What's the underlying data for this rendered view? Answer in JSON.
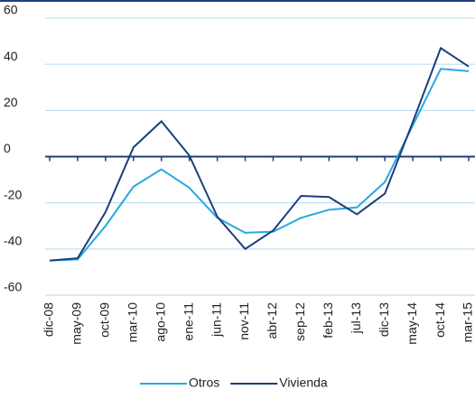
{
  "chart_data": {
    "type": "line",
    "categories": [
      "dic-08",
      "may-09",
      "oct-09",
      "mar-10",
      "ago-10",
      "ene-11",
      "jun-11",
      "nov-11",
      "abr-12",
      "sep-12",
      "feb-13",
      "jul-13",
      "dic-13",
      "may-14",
      "oct-14",
      "mar-15"
    ],
    "series": [
      {
        "name": "Otros",
        "color": "#29a8e0",
        "values": [
          -45,
          -44.5,
          -30,
          -13,
          -5.5,
          -13.5,
          -26.5,
          -33,
          -32.5,
          -26.5,
          -23,
          -22,
          -11,
          13.5,
          38,
          37
        ]
      },
      {
        "name": "Vivienda",
        "color": "#1b3f7a",
        "values": [
          -45,
          -44,
          -24,
          4,
          15.3,
          0.5,
          -26,
          -40,
          -32,
          -17,
          -17.5,
          -25,
          -16,
          15,
          47,
          39
        ]
      }
    ],
    "ylim": [
      -60,
      60
    ],
    "yticks": [
      -60,
      -40,
      -20,
      0,
      20,
      40,
      60
    ],
    "grid": true
  }
}
